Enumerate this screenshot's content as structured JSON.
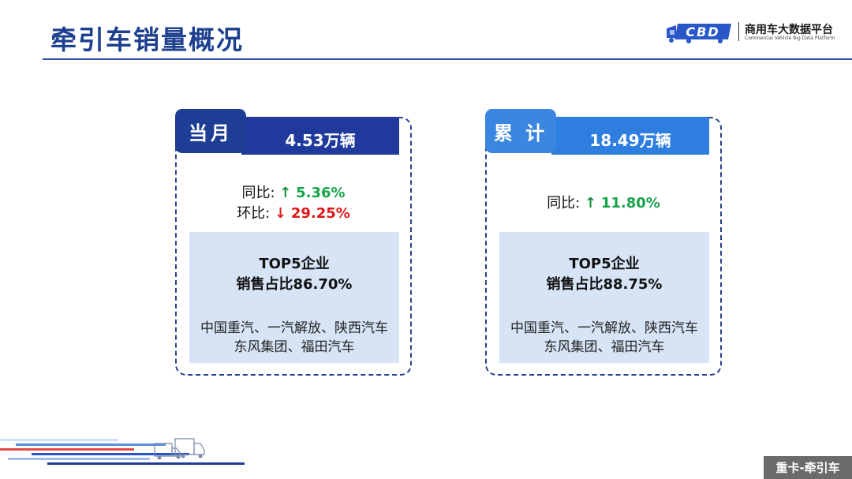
{
  "header": {
    "title": "牵引车销量概况",
    "logo": {
      "mark_text": "CBD",
      "name_cn": "商用车大数据平台",
      "name_en": "Commercial Vehicle Big Data Platform"
    }
  },
  "cards": [
    {
      "tab_label": "当月",
      "value": "4.53万辆",
      "stats": [
        {
          "label": "同比: ",
          "arrow": "↑",
          "value": "5.36%",
          "direction": "up"
        },
        {
          "label": "环比: ",
          "arrow": "↓",
          "value": "29.25%",
          "direction": "down"
        }
      ],
      "share_title_line1": "TOP5企业",
      "share_title_line2": "销售占比86.70%",
      "share_list_line1": "中国重汽、一汽解放、陕西汽车",
      "share_list_line2": "东风集团、福田汽车"
    },
    {
      "tab_label": "累 计",
      "value": "18.49万辆",
      "stats": [
        {
          "label": "同比: ",
          "arrow": "↑",
          "value": "11.80%",
          "direction": "up"
        }
      ],
      "share_title_line1": "TOP5企业",
      "share_title_line2": "销售占比88.75%",
      "share_list_line1": "中国重汽、一汽解放、陕西汽车",
      "share_list_line2": "东风集团、福田汽车"
    }
  ],
  "footer": {
    "badge": "重卡-牵引车"
  },
  "colors": {
    "title": "#1d3f8f",
    "tab_left": "#1e3d94",
    "tab_right": "#3a86e0",
    "up": "#16a34a",
    "down": "#e01818",
    "share_bg": "#d6e4f6"
  }
}
